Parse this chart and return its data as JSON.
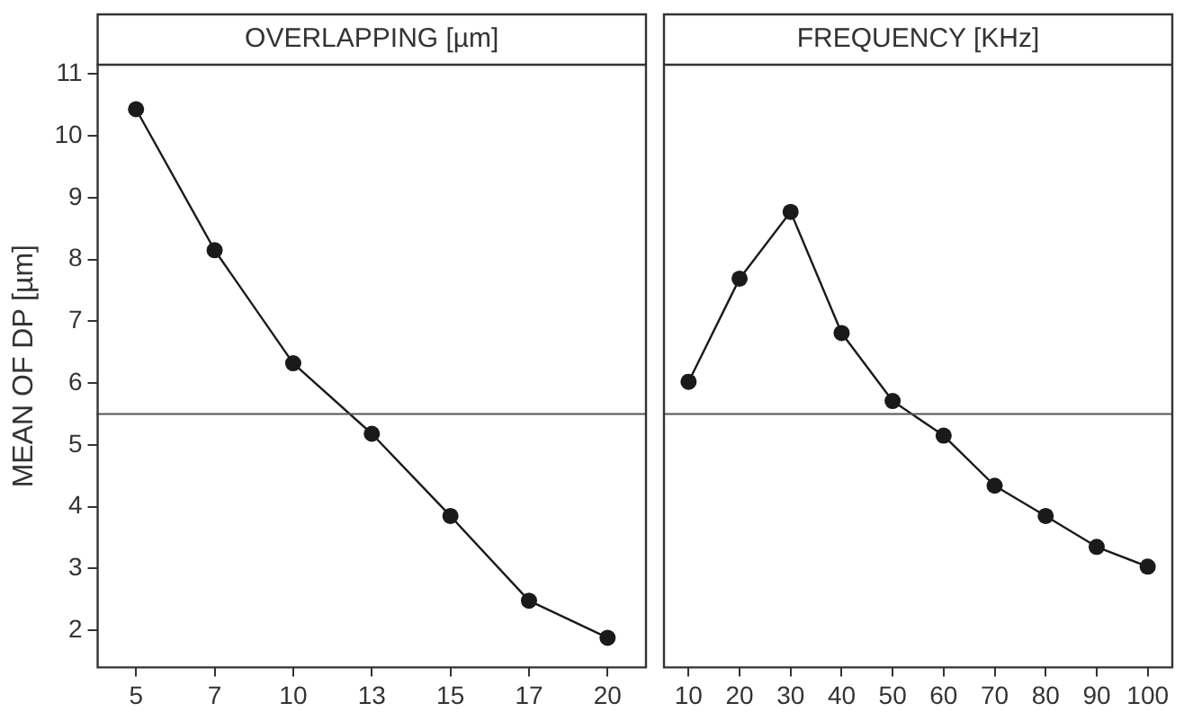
{
  "chart_data": [
    {
      "type": "line",
      "title": "OVERLAPPING [µm]",
      "ylabel": "MEAN OF DP [µm]",
      "categories": [
        "5",
        "7",
        "10",
        "13",
        "15",
        "17",
        "20"
      ],
      "series": [
        {
          "color": "#1a1a1a",
          "values": [
            10.43,
            8.15,
            6.32,
            5.18,
            3.85,
            2.48,
            1.88
          ]
        }
      ],
      "ylim": [
        1.4,
        11.15
      ],
      "yticks": [
        2,
        3,
        4,
        5,
        6,
        7,
        8,
        9,
        10,
        11
      ],
      "ref_lines": [
        {
          "axis": "y",
          "value": 5.5,
          "color": "#555555"
        }
      ],
      "grid": false,
      "legend": false,
      "marker": "circle",
      "line_style": "solid"
    },
    {
      "type": "line",
      "title": "FREQUENCY [KHz]",
      "categories": [
        "10",
        "20",
        "30",
        "40",
        "50",
        "60",
        "70",
        "80",
        "90",
        "100"
      ],
      "series": [
        {
          "color": "#1a1a1a",
          "values": [
            6.02,
            7.69,
            8.77,
            6.81,
            5.71,
            5.15,
            4.34,
            3.85,
            3.35,
            3.03
          ]
        }
      ],
      "ylim": [
        1.4,
        11.15
      ],
      "yticks": [
        2,
        3,
        4,
        5,
        6,
        7,
        8,
        9,
        10,
        11
      ],
      "tick_labels": "x",
      "ref_lines": [
        {
          "axis": "y",
          "value": 5.5,
          "color": "#555555"
        }
      ],
      "grid": false,
      "legend": false,
      "marker": "circle",
      "line_style": "solid"
    }
  ]
}
